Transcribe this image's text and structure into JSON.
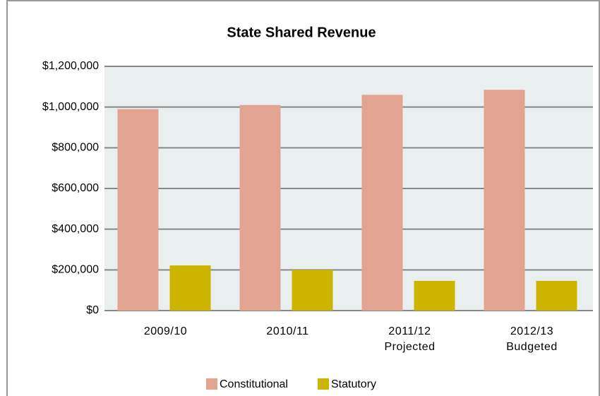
{
  "chart_data": {
    "type": "bar",
    "title": "State Shared Revenue",
    "categories": [
      "2009/10",
      "2010/11",
      "2011/12\nProjected",
      "2012/13\nBudgeted"
    ],
    "series": [
      {
        "name": "Constitutional",
        "color": "#e3a391",
        "values": [
          990000,
          1010000,
          1060000,
          1085000
        ]
      },
      {
        "name": "Statutory",
        "color": "#cdb400",
        "values": [
          222000,
          200000,
          146000,
          146000
        ]
      }
    ],
    "ylim": [
      0,
      1200000
    ],
    "yticks": [
      {
        "value": 0,
        "label": "$0"
      },
      {
        "value": 200000,
        "label": "$200,000"
      },
      {
        "value": 400000,
        "label": "$400,000"
      },
      {
        "value": 600000,
        "label": "$600,000"
      },
      {
        "value": 800000,
        "label": "$800,000"
      },
      {
        "value": 1000000,
        "label": "$1,000,000"
      },
      {
        "value": 1200000,
        "label": "$1,200,000"
      }
    ],
    "grid": true,
    "legend": "bottom"
  }
}
